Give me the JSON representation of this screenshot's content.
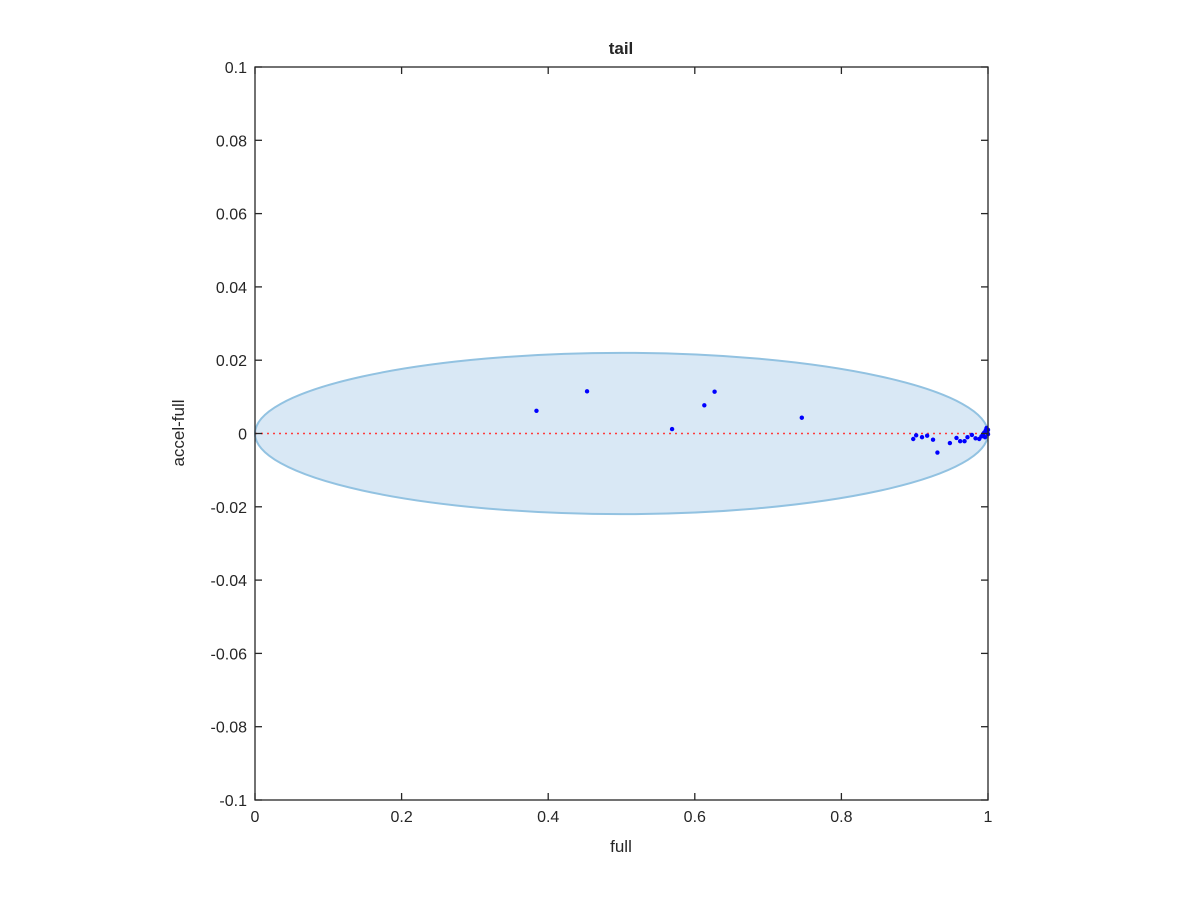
{
  "chart_data": {
    "type": "scatter",
    "title": "tail",
    "xlabel": "full",
    "ylabel": "accel-full",
    "xlim": [
      0,
      1
    ],
    "ylim": [
      -0.1,
      0.1
    ],
    "xticks": [
      "0",
      "0.2",
      "0.4",
      "0.6",
      "0.8",
      "1"
    ],
    "yticks": [
      "0.1",
      "0.08",
      "0.06",
      "0.04",
      "0.02",
      "0",
      "-0.02",
      "-0.04",
      "-0.06",
      "-0.08",
      "-0.1"
    ],
    "grid": false,
    "legend": "none",
    "ellipse": {
      "center": [
        0.5,
        0
      ],
      "x_radius": 0.5,
      "y_radius": 0.022,
      "fill": "#d9e8f5",
      "stroke": "#92c2e1"
    },
    "reference_line": {
      "y": 0,
      "x_range": [
        0,
        1
      ],
      "style": "dotted",
      "color": "#ff3b3b"
    },
    "series": [
      {
        "color": "#0000ff",
        "points": [
          [
            0.384,
            0.0062
          ],
          [
            0.453,
            0.0115
          ],
          [
            0.569,
            0.0012
          ],
          [
            0.613,
            0.0077
          ],
          [
            0.627,
            0.0114
          ],
          [
            0.746,
            0.0043
          ],
          [
            0.898,
            -0.0015
          ],
          [
            0.902,
            -0.0005
          ],
          [
            0.91,
            -0.001
          ],
          [
            0.917,
            -0.0006
          ],
          [
            0.925,
            -0.0017
          ],
          [
            0.931,
            -0.0052
          ],
          [
            0.948,
            -0.0026
          ],
          [
            0.957,
            -0.0012
          ],
          [
            0.962,
            -0.0021
          ],
          [
            0.968,
            -0.0021
          ],
          [
            0.972,
            -0.001
          ],
          [
            0.978,
            -0.0004
          ],
          [
            0.983,
            -0.0013
          ],
          [
            0.988,
            -0.0015
          ],
          [
            0.991,
            -0.0008
          ],
          [
            0.993,
            -0.0003
          ],
          [
            0.995,
            0.0003
          ],
          [
            0.997,
            0.0009
          ],
          [
            0.998,
            0.0015
          ],
          [
            0.999,
            0.0004
          ],
          [
            1.0,
            -0.0002
          ],
          [
            0.996,
            -0.001
          ],
          [
            0.994,
            0.0
          ],
          [
            1.0,
            0.001
          ]
        ]
      }
    ]
  }
}
